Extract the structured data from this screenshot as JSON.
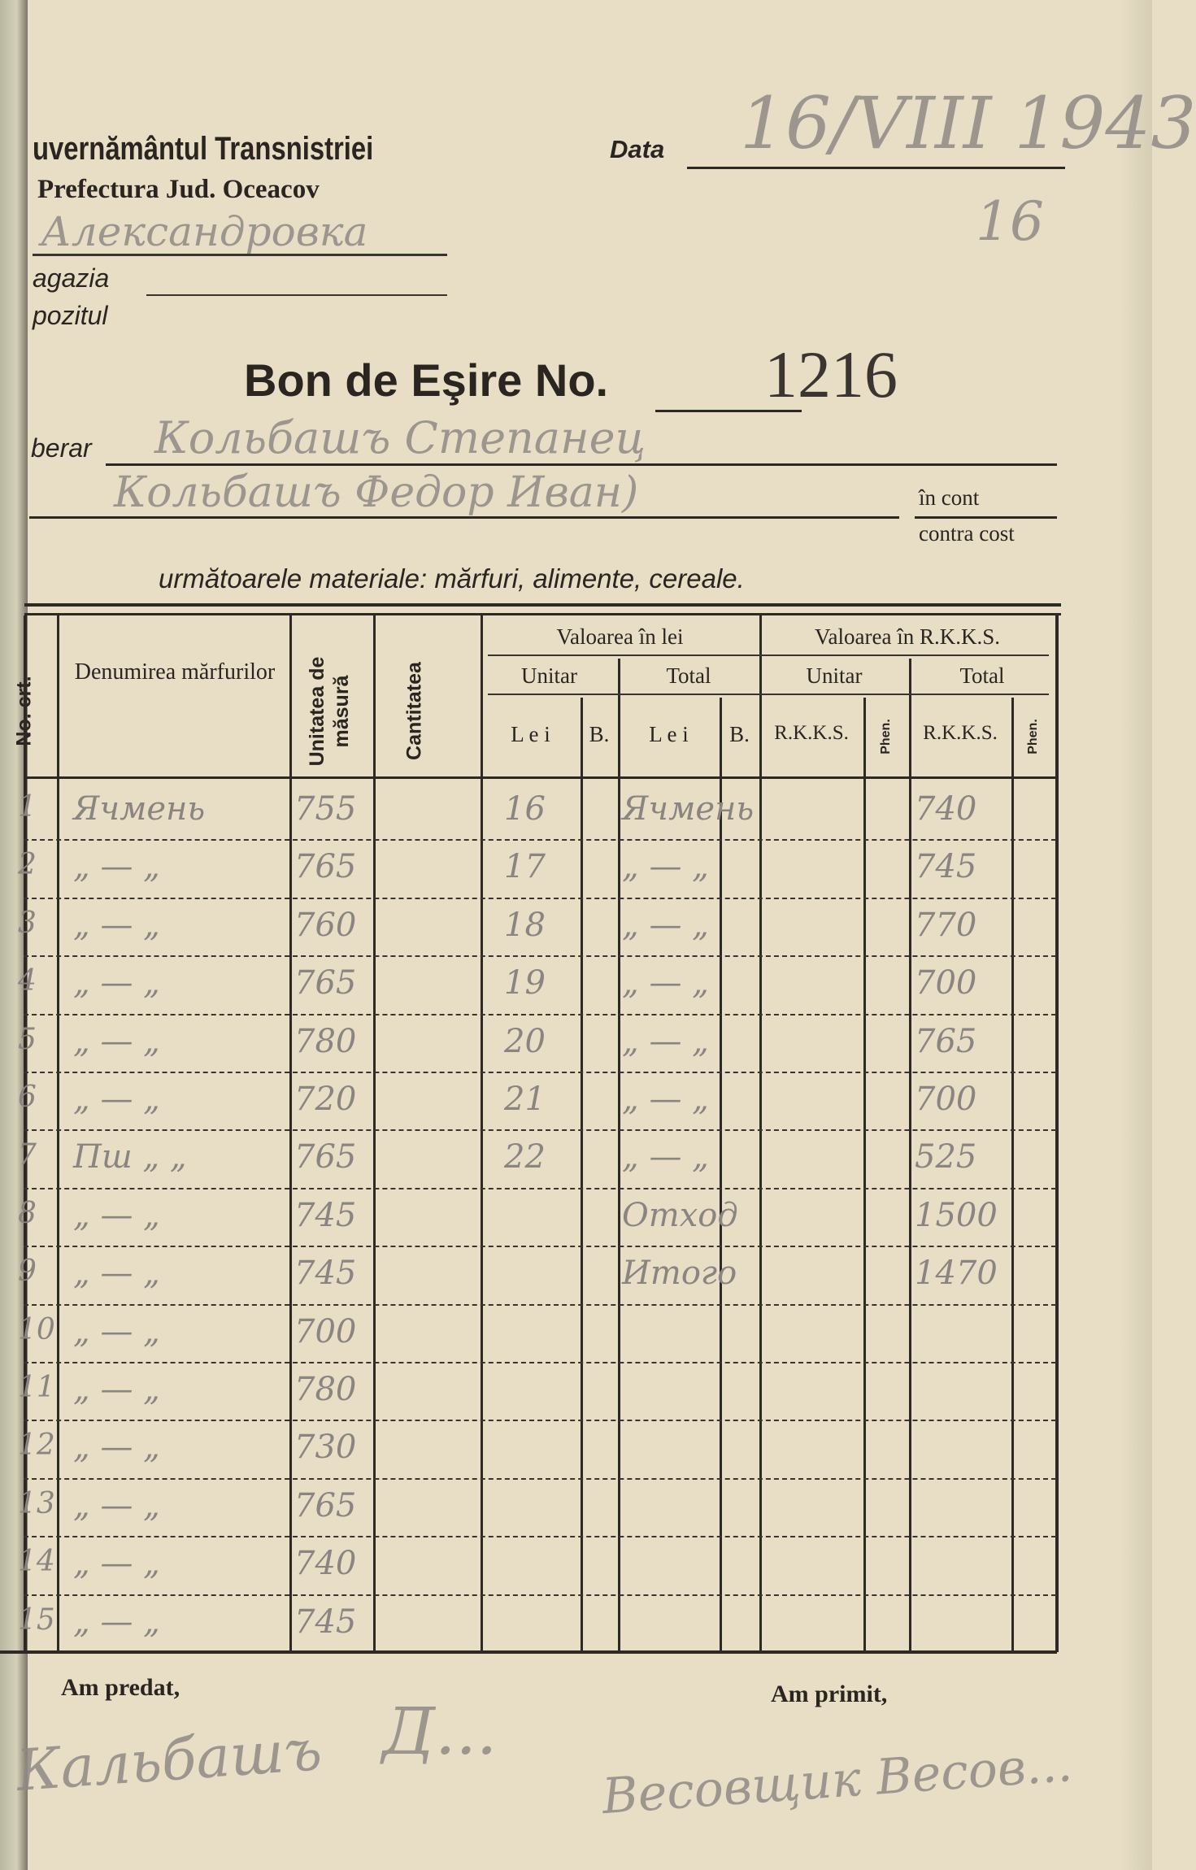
{
  "header": {
    "authority": "uvernământul Transnistriei",
    "prefecture": "Prefectura Jud. Oceacov",
    "date_label": "Data",
    "date_value": "16/VIII 1943",
    "date_note": "16",
    "place_handwritten": "Александровка",
    "magazia_label": "agazia",
    "depozitul_label": "pozitul",
    "title": "Bon de Eşire No.",
    "number": "1216",
    "gestionar_label": "berar",
    "gestionar_handwritten": "Кольбашъ Степанец",
    "second_line_handwritten": "Кольбашъ Федор Иван)",
    "in_cont": "în cont",
    "contra_cost": "contra cost",
    "materials": "următoarele materiale: mărfuri, alimente, cereale."
  },
  "table": {
    "headers": {
      "no": "No. crt.",
      "name": "Denumirea mărfurilor",
      "unit": "Unitatea de măsură",
      "qty": "Cantitatea",
      "val_lei": "Valoarea în lei",
      "val_rkks": "Valoarea în R.K.K.S.",
      "unitar": "Unitar",
      "total": "Total",
      "lei": "L e i",
      "b": "B.",
      "rkks": "R.K.K.S.",
      "phen": "Phen."
    },
    "rows": [
      {
        "no": "1",
        "name": "Ячмень",
        "unit": "755",
        "lei": "16",
        "total_lei": "Ячмень",
        "total_rkks": "740"
      },
      {
        "no": "2",
        "name": "„ — „",
        "unit": "765",
        "lei": "17",
        "total_lei": "„ — „",
        "total_rkks": "745"
      },
      {
        "no": "3",
        "name": "„ — „",
        "unit": "760",
        "lei": "18",
        "total_lei": "„ — „",
        "total_rkks": "770"
      },
      {
        "no": "4",
        "name": "„ — „",
        "unit": "765",
        "lei": "19",
        "total_lei": "„ — „",
        "total_rkks": "700"
      },
      {
        "no": "5",
        "name": "„ — „",
        "unit": "780",
        "lei": "20",
        "total_lei": "„ — „",
        "total_rkks": "765"
      },
      {
        "no": "6",
        "name": "„ — „",
        "unit": "720",
        "lei": "21",
        "total_lei": "„ — „",
        "total_rkks": "700"
      },
      {
        "no": "7",
        "name": "Пш „ „",
        "unit": "765",
        "lei": "22",
        "total_lei": "„ — „",
        "total_rkks": "525"
      },
      {
        "no": "8",
        "name": "„ — „",
        "unit": "745",
        "lei": "",
        "total_lei": "Отход",
        "total_rkks": "1500"
      },
      {
        "no": "9",
        "name": "„ — „",
        "unit": "745",
        "lei": "",
        "total_lei": "Итого",
        "total_rkks": "1470"
      },
      {
        "no": "10",
        "name": "„ — „",
        "unit": "700",
        "lei": "",
        "total_lei": "",
        "total_rkks": ""
      },
      {
        "no": "11",
        "name": "„ — „",
        "unit": "780",
        "lei": "",
        "total_lei": "",
        "total_rkks": ""
      },
      {
        "no": "12",
        "name": "„ — „",
        "unit": "730",
        "lei": "",
        "total_lei": "",
        "total_rkks": ""
      },
      {
        "no": "13",
        "name": "„ — „",
        "unit": "765",
        "lei": "",
        "total_lei": "",
        "total_rkks": ""
      },
      {
        "no": "14",
        "name": "„ — „",
        "unit": "740",
        "lei": "",
        "total_lei": "",
        "total_rkks": ""
      },
      {
        "no": "15",
        "name": "„ — „",
        "unit": "745",
        "lei": "",
        "total_lei": "",
        "total_rkks": ""
      }
    ]
  },
  "footer": {
    "am_predat": "Am predat,",
    "am_primit": "Am primit,",
    "signature_left": "Кальбашъ",
    "signature_mid": "Д...",
    "signature_right": "Весовщик Весов..."
  }
}
